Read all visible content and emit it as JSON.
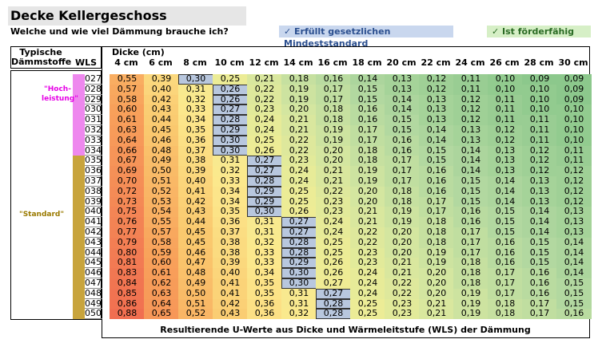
{
  "title": "Decke Kellergeschoss",
  "subtitle": "Welche und wie viel Dämmung brauche ich?",
  "legend": {
    "mindest": "✓ Erfüllt gesetzlichen Mindeststandard",
    "foerder": "✓ Ist förderfähig"
  },
  "header": {
    "typical_line1": "Typische",
    "typical_line2": "Dämmstoffe",
    "wls": "WLS",
    "dicke": "Dicke (cm)"
  },
  "thickness": [
    "4 cm",
    "6 cm",
    "8 cm",
    "10 cm",
    "12 cm",
    "14 cm",
    "16 cm",
    "18 cm",
    "20 cm",
    "22 cm",
    "24 cm",
    "26 cm",
    "28 cm",
    "30 cm"
  ],
  "labels": {
    "hoch_line1": "\"Hoch-",
    "hoch_line2": "leistung\"",
    "standard": "\"Standard\""
  },
  "wls": [
    "027",
    "028",
    "029",
    "030",
    "031",
    "032",
    "033",
    "034",
    "035",
    "036",
    "037",
    "038",
    "039",
    "040",
    "041",
    "042",
    "043",
    "044",
    "045",
    "046",
    "047",
    "048",
    "049",
    "050"
  ],
  "rows": [
    [
      "0,55",
      "0,39",
      "0,30",
      "0,25",
      "0,21",
      "0,18",
      "0,16",
      "0,14",
      "0,13",
      "0,12",
      "0,11",
      "0,10",
      "0,09",
      "0,09"
    ],
    [
      "0,57",
      "0,40",
      "0,31",
      "0,26",
      "0,22",
      "0,19",
      "0,17",
      "0,15",
      "0,13",
      "0,12",
      "0,11",
      "0,10",
      "0,10",
      "0,09"
    ],
    [
      "0,58",
      "0,42",
      "0,32",
      "0,26",
      "0,22",
      "0,19",
      "0,17",
      "0,15",
      "0,14",
      "0,13",
      "0,12",
      "0,11",
      "0,10",
      "0,09"
    ],
    [
      "0,60",
      "0,43",
      "0,33",
      "0,27",
      "0,23",
      "0,20",
      "0,18",
      "0,16",
      "0,14",
      "0,13",
      "0,12",
      "0,11",
      "0,10",
      "0,10"
    ],
    [
      "0,61",
      "0,44",
      "0,34",
      "0,28",
      "0,24",
      "0,21",
      "0,18",
      "0,16",
      "0,15",
      "0,13",
      "0,12",
      "0,11",
      "0,11",
      "0,10"
    ],
    [
      "0,63",
      "0,45",
      "0,35",
      "0,29",
      "0,24",
      "0,21",
      "0,19",
      "0,17",
      "0,15",
      "0,14",
      "0,13",
      "0,12",
      "0,11",
      "0,10"
    ],
    [
      "0,64",
      "0,46",
      "0,36",
      "0,30",
      "0,25",
      "0,22",
      "0,19",
      "0,17",
      "0,16",
      "0,14",
      "0,13",
      "0,12",
      "0,11",
      "0,10"
    ],
    [
      "0,66",
      "0,48",
      "0,37",
      "0,30",
      "0,26",
      "0,22",
      "0,20",
      "0,18",
      "0,16",
      "0,15",
      "0,14",
      "0,13",
      "0,12",
      "0,11"
    ],
    [
      "0,67",
      "0,49",
      "0,38",
      "0,31",
      "0,27",
      "0,23",
      "0,20",
      "0,18",
      "0,17",
      "0,15",
      "0,14",
      "0,13",
      "0,12",
      "0,11"
    ],
    [
      "0,69",
      "0,50",
      "0,39",
      "0,32",
      "0,27",
      "0,24",
      "0,21",
      "0,19",
      "0,17",
      "0,16",
      "0,14",
      "0,13",
      "0,12",
      "0,12"
    ],
    [
      "0,70",
      "0,51",
      "0,40",
      "0,33",
      "0,28",
      "0,24",
      "0,21",
      "0,19",
      "0,17",
      "0,16",
      "0,15",
      "0,14",
      "0,13",
      "0,12"
    ],
    [
      "0,72",
      "0,52",
      "0,41",
      "0,34",
      "0,29",
      "0,25",
      "0,22",
      "0,20",
      "0,18",
      "0,16",
      "0,15",
      "0,14",
      "0,13",
      "0,12"
    ],
    [
      "0,73",
      "0,53",
      "0,42",
      "0,34",
      "0,29",
      "0,25",
      "0,23",
      "0,20",
      "0,18",
      "0,17",
      "0,15",
      "0,14",
      "0,13",
      "0,12"
    ],
    [
      "0,75",
      "0,54",
      "0,43",
      "0,35",
      "0,30",
      "0,26",
      "0,23",
      "0,21",
      "0,19",
      "0,17",
      "0,16",
      "0,15",
      "0,14",
      "0,13"
    ],
    [
      "0,76",
      "0,55",
      "0,44",
      "0,36",
      "0,31",
      "0,27",
      "0,24",
      "0,21",
      "0,19",
      "0,18",
      "0,16",
      "0,15",
      "0,14",
      "0,13"
    ],
    [
      "0,77",
      "0,57",
      "0,45",
      "0,37",
      "0,31",
      "0,27",
      "0,24",
      "0,22",
      "0,20",
      "0,18",
      "0,17",
      "0,15",
      "0,14",
      "0,13"
    ],
    [
      "0,79",
      "0,58",
      "0,45",
      "0,38",
      "0,32",
      "0,28",
      "0,25",
      "0,22",
      "0,20",
      "0,18",
      "0,17",
      "0,16",
      "0,15",
      "0,14"
    ],
    [
      "0,80",
      "0,59",
      "0,46",
      "0,38",
      "0,33",
      "0,28",
      "0,25",
      "0,23",
      "0,20",
      "0,19",
      "0,17",
      "0,16",
      "0,15",
      "0,14"
    ],
    [
      "0,81",
      "0,60",
      "0,47",
      "0,39",
      "0,33",
      "0,29",
      "0,26",
      "0,23",
      "0,21",
      "0,19",
      "0,18",
      "0,16",
      "0,15",
      "0,14"
    ],
    [
      "0,83",
      "0,61",
      "0,48",
      "0,40",
      "0,34",
      "0,30",
      "0,26",
      "0,24",
      "0,21",
      "0,20",
      "0,18",
      "0,17",
      "0,16",
      "0,14"
    ],
    [
      "0,84",
      "0,62",
      "0,49",
      "0,41",
      "0,35",
      "0,30",
      "0,27",
      "0,24",
      "0,22",
      "0,20",
      "0,18",
      "0,17",
      "0,16",
      "0,15"
    ],
    [
      "0,85",
      "0,63",
      "0,50",
      "0,41",
      "0,35",
      "0,31",
      "0,27",
      "0,24",
      "0,22",
      "0,20",
      "0,19",
      "0,17",
      "0,16",
      "0,15"
    ],
    [
      "0,86",
      "0,64",
      "0,51",
      "0,42",
      "0,36",
      "0,31",
      "0,28",
      "0,25",
      "0,23",
      "0,21",
      "0,19",
      "0,18",
      "0,17",
      "0,15"
    ],
    [
      "0,88",
      "0,65",
      "0,52",
      "0,43",
      "0,36",
      "0,32",
      "0,28",
      "0,25",
      "0,23",
      "0,21",
      "0,19",
      "0,18",
      "0,17",
      "0,16"
    ]
  ],
  "min_col": [
    2,
    3,
    3,
    3,
    3,
    3,
    3,
    3,
    4,
    4,
    4,
    4,
    4,
    4,
    5,
    5,
    5,
    5,
    5,
    5,
    5,
    6,
    6,
    6
  ],
  "footer": "Resultierende U-Werte aus Dicke und Wärmeleitstufe (WLS) der Dämmung",
  "colors": {
    "mindest_fill": "#b8c7de",
    "foerder": "#c4e3b4",
    "header_gray": "#e6e6e6",
    "wls_high": "#ee88ee",
    "wls_std": "#c8a43c"
  }
}
